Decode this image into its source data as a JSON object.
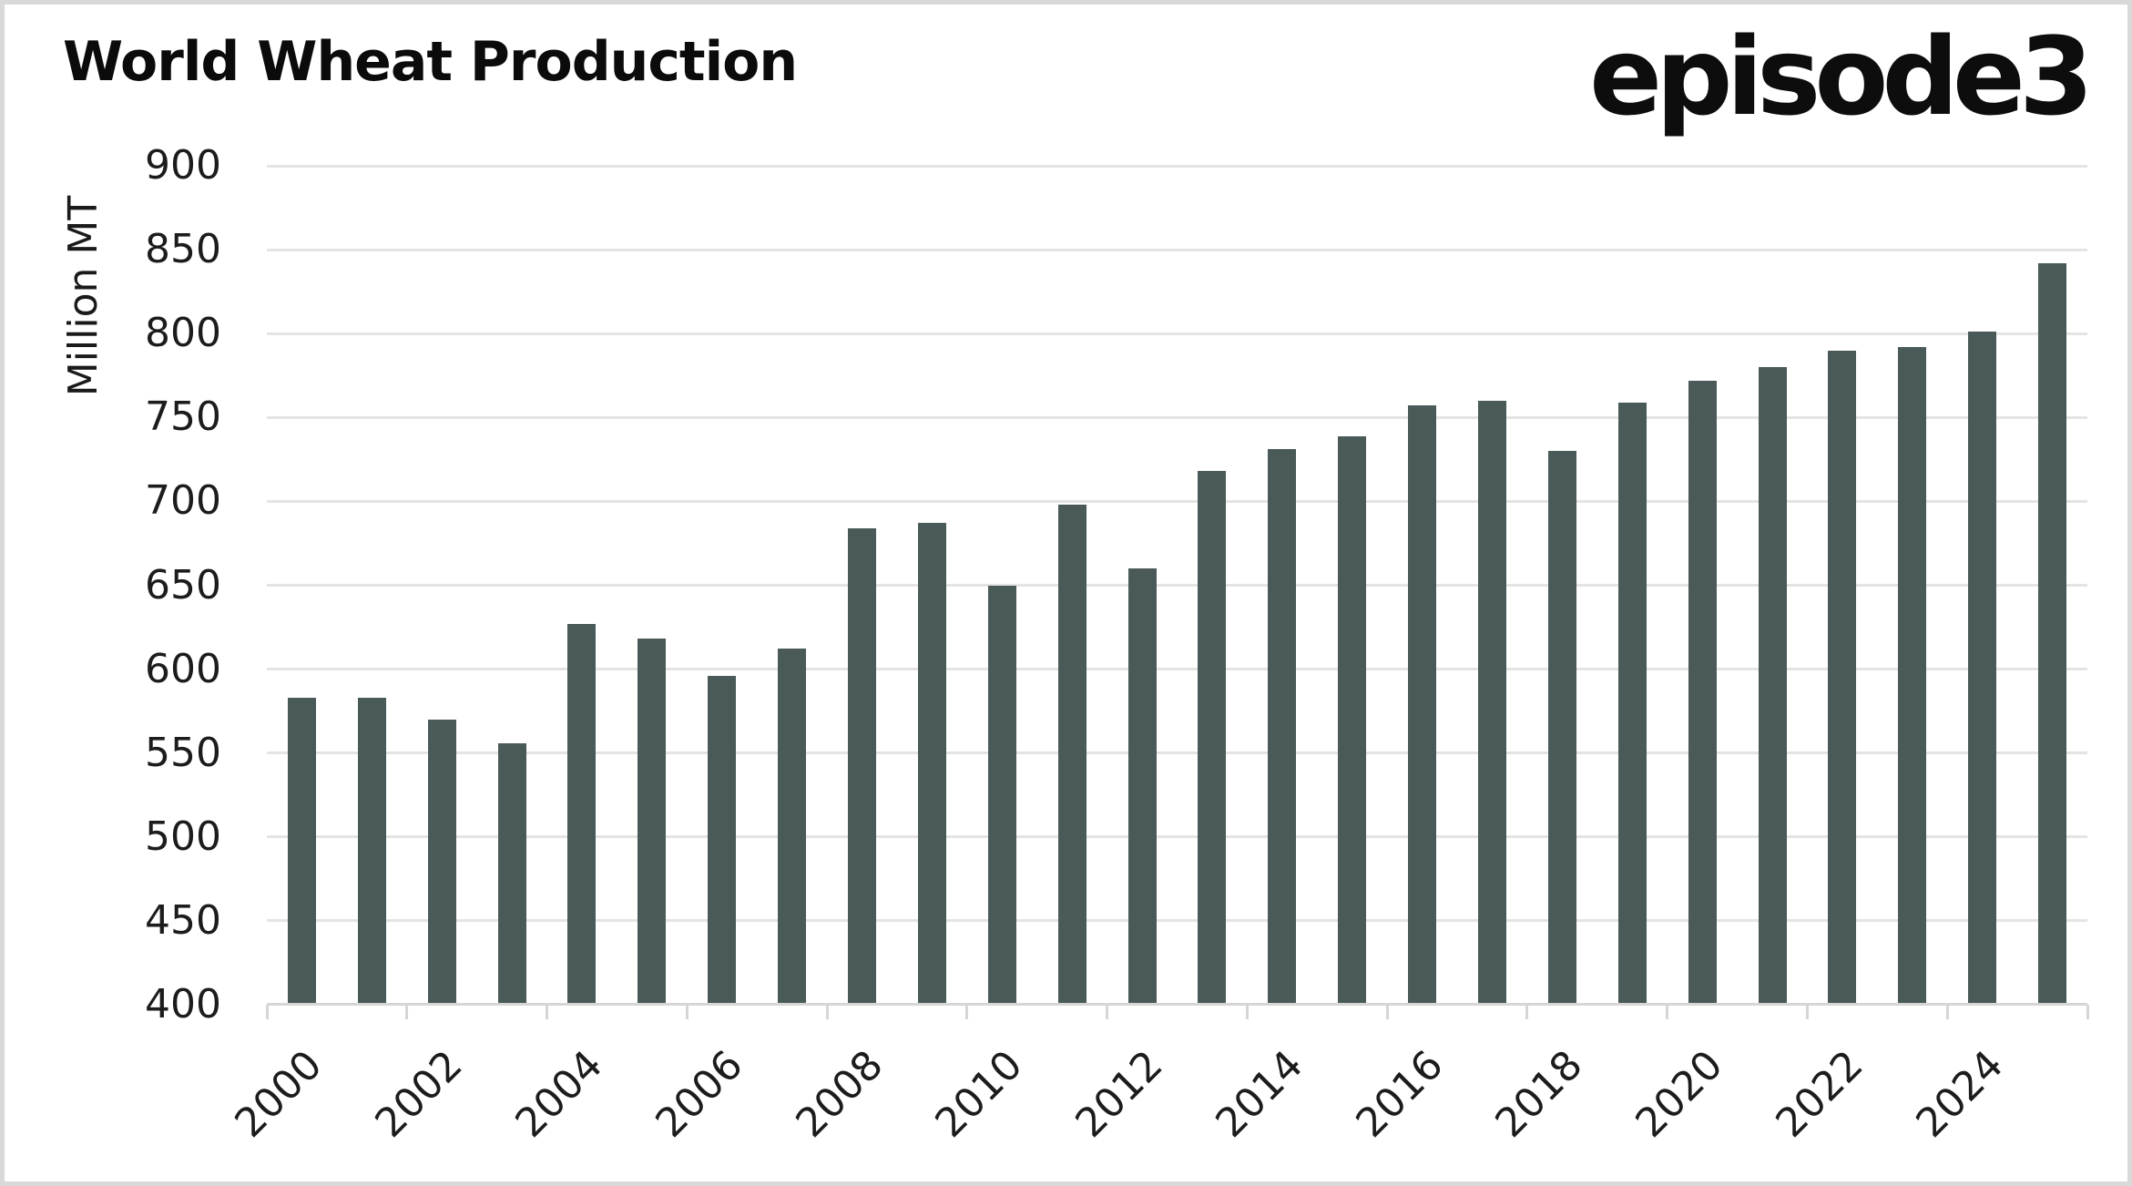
{
  "header": {
    "title": "World Wheat Production",
    "logo": "episode3"
  },
  "chart_data": {
    "type": "bar",
    "title": "World Wheat Production",
    "ylabel": "Million MT",
    "xlabel": "",
    "categories": [
      "2000",
      "2001",
      "2002",
      "2003",
      "2004",
      "2005",
      "2006",
      "2007",
      "2008",
      "2009",
      "2010",
      "2011",
      "2012",
      "2013",
      "2014",
      "2015",
      "2016",
      "2017",
      "2018",
      "2019",
      "2020",
      "2021",
      "2022",
      "2023",
      "2024",
      "2025"
    ],
    "values": [
      583,
      583,
      570,
      556,
      627,
      618,
      596,
      612,
      684,
      687,
      650,
      698,
      660,
      718,
      731,
      739,
      757,
      760,
      730,
      759,
      772,
      780,
      790,
      792,
      801,
      842
    ],
    "ylim": [
      400,
      900
    ],
    "yticks": [
      400,
      450,
      500,
      550,
      600,
      650,
      700,
      750,
      800,
      850,
      900
    ],
    "xtick_labels": [
      "2000",
      "2002",
      "2004",
      "2006",
      "2008",
      "2010",
      "2012",
      "2014",
      "2016",
      "2018",
      "2020",
      "2022",
      "2024"
    ],
    "grid": "horizontal",
    "legend": "none"
  },
  "colors": {
    "bar": "#4a5a58",
    "grid": "#e4e4e4",
    "axis": "#d6d6d6",
    "text": "#1c1c1c",
    "title": "#0b0b0b",
    "background": "#ffffff",
    "border": "#d9d9d9"
  }
}
